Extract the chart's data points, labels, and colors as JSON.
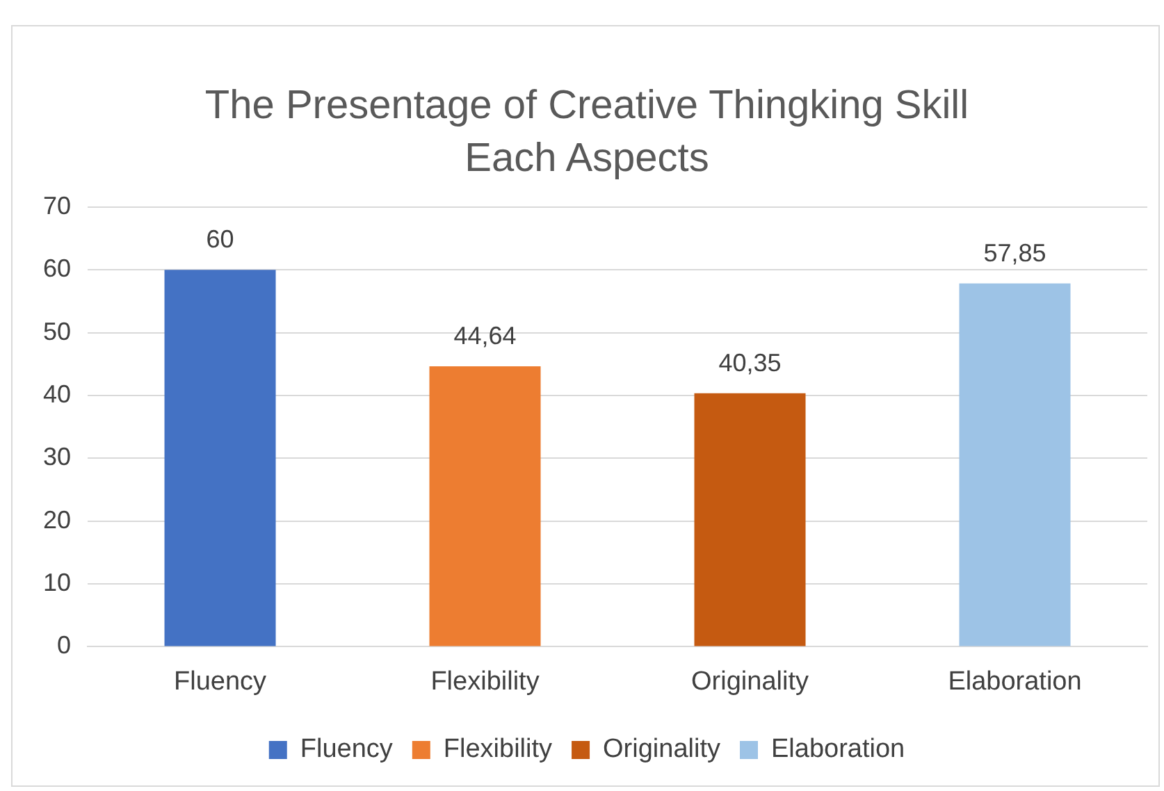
{
  "chart_data": {
    "type": "bar",
    "title": "The Presentage of Creative Thingking Skill Each Aspects",
    "categories": [
      "Fluency",
      "Flexibility",
      "Originality",
      "Elaboration"
    ],
    "series": [
      {
        "name": "Fluency",
        "color": "#4472c4",
        "values": [
          60,
          null,
          null,
          null
        ],
        "value_labels": [
          "60",
          null,
          null,
          null
        ]
      },
      {
        "name": "Flexibility",
        "color": "#ed7d31",
        "values": [
          null,
          44.64,
          null,
          null
        ],
        "value_labels": [
          null,
          "44,64",
          null,
          null
        ]
      },
      {
        "name": "Originality",
        "color": "#c55a11",
        "values": [
          null,
          null,
          40.35,
          null
        ],
        "value_labels": [
          null,
          null,
          "40,35",
          null
        ]
      },
      {
        "name": "Elaboration",
        "color": "#9dc3e6",
        "values": [
          null,
          null,
          null,
          57.85
        ],
        "value_labels": [
          null,
          null,
          null,
          "57,85"
        ]
      }
    ],
    "ylim": [
      0,
      70
    ],
    "yticks": [
      0,
      10,
      20,
      30,
      40,
      50,
      60,
      70
    ],
    "grid": "y",
    "legend": "bottom"
  }
}
